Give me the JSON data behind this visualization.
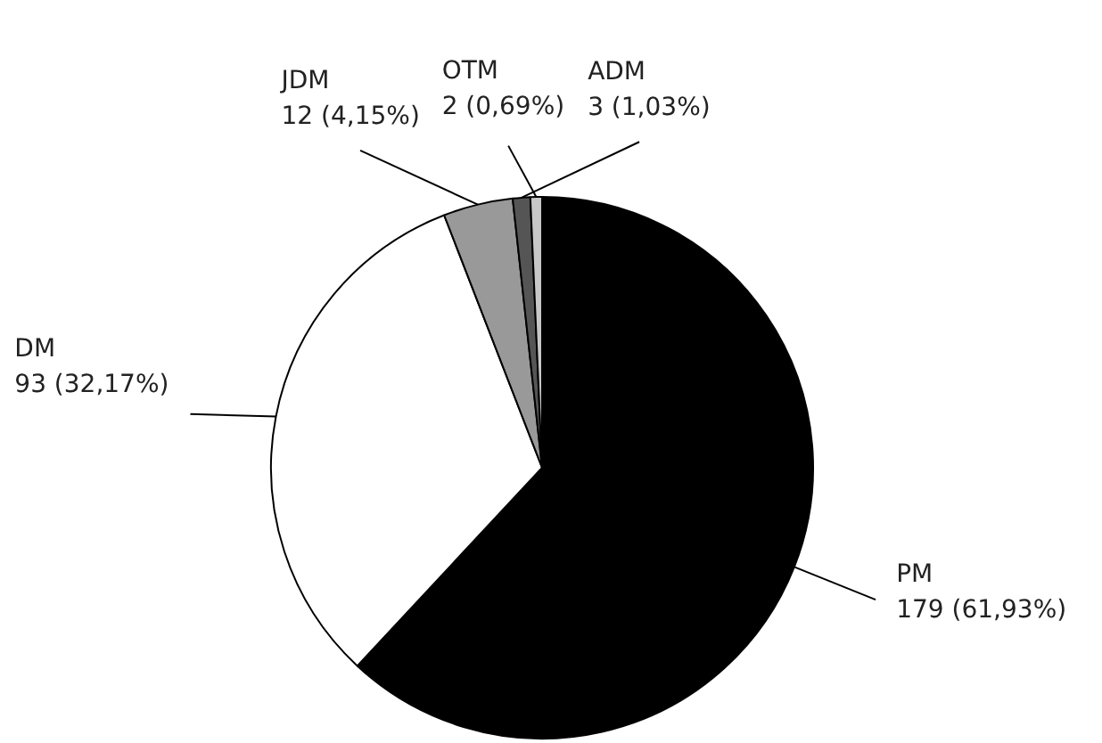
{
  "chart_data": {
    "type": "pie",
    "categories": [
      "PM",
      "DM",
      "JDM",
      "ADM",
      "OTM"
    ],
    "values": [
      179,
      93,
      12,
      3,
      2
    ],
    "colors": [
      "#000000",
      "#ffffff",
      "#999999",
      "#555555",
      "#c8c8c8"
    ],
    "value_labels": [
      "179 (61,93%)",
      "93 (32,17%)",
      "12 (4,15%)",
      "3 (1,03%)",
      "2 (0,69%)"
    ],
    "legend": false
  }
}
